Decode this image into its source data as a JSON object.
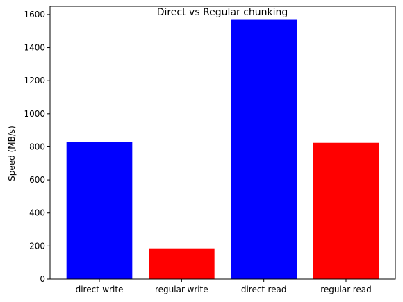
{
  "chart_data": {
    "type": "bar",
    "title": "Direct vs Regular chunking",
    "xlabel": "",
    "ylabel": "Speed (MB/s)",
    "categories": [
      "direct-write",
      "regular-write",
      "direct-read",
      "regular-read"
    ],
    "values": [
      828,
      186,
      1568,
      824
    ],
    "colors": [
      "#0000ff",
      "#ff0000",
      "#0000ff",
      "#ff0000"
    ],
    "ylim": [
      0,
      1650
    ],
    "yticks": [
      0,
      200,
      400,
      600,
      800,
      1000,
      1200,
      1400,
      1600
    ],
    "grid": false,
    "legend": "none"
  }
}
